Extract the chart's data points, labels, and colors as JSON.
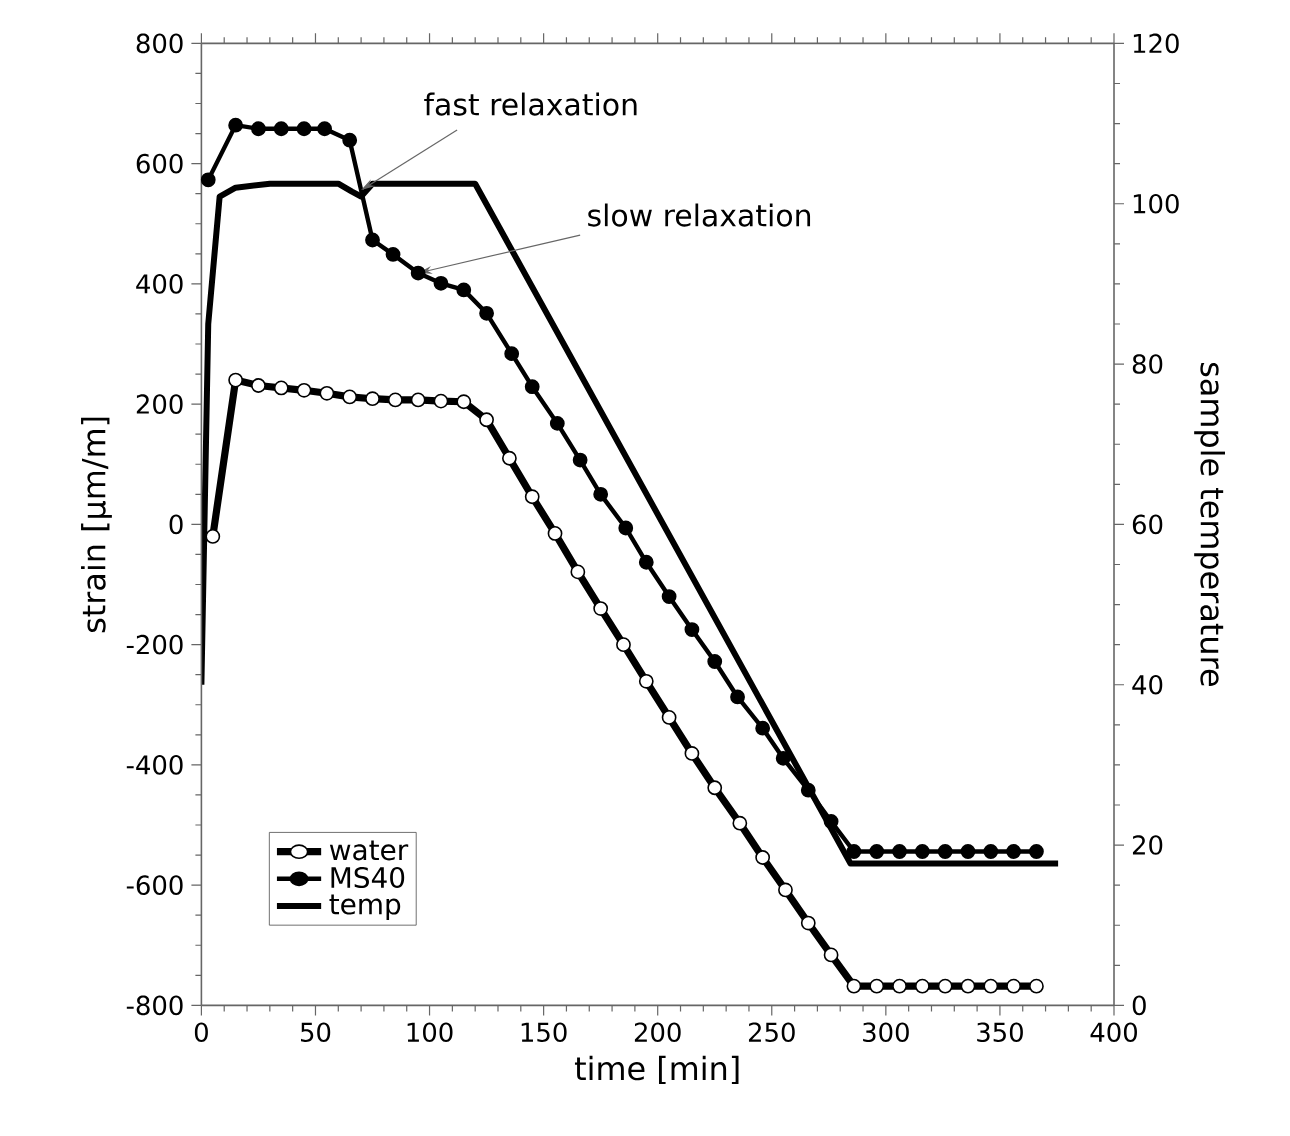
{
  "chart_data": {
    "type": "line",
    "xlabel": "time [min]",
    "ylabel": "strain [µm/m]",
    "y2label": "sample temperature",
    "xlim": [
      0,
      400
    ],
    "xticks": [
      0,
      50,
      100,
      150,
      200,
      250,
      300,
      350,
      400
    ],
    "ylim": [
      -800,
      800
    ],
    "yticks": [
      -800,
      -600,
      -400,
      -200,
      0,
      200,
      400,
      600,
      800
    ],
    "y2lim": [
      0,
      120
    ],
    "y2ticks": [
      0,
      20,
      40,
      60,
      80,
      100,
      120
    ],
    "legend": "bottom left",
    "marker": "circle",
    "series": [
      {
        "name": "water",
        "color": "#000000",
        "x": [
          5,
          15,
          25,
          35,
          45,
          55,
          65,
          75,
          85,
          95,
          105,
          115,
          125,
          135,
          145,
          155,
          165,
          175,
          185,
          195,
          205,
          215,
          225,
          236,
          246,
          256,
          266,
          276,
          286,
          296,
          306,
          316,
          326,
          336,
          346,
          356,
          366
        ],
        "values": [
          -20,
          240,
          231,
          227,
          223,
          218,
          212,
          209,
          207,
          207,
          205,
          204,
          174,
          110,
          46,
          -15,
          -79,
          -140,
          -200,
          -261,
          -321,
          -381,
          -438,
          -497,
          -554,
          -608,
          -663,
          -716,
          -768,
          -768,
          -768,
          -768,
          -768,
          -768,
          -768,
          -768,
          -768
        ]
      },
      {
        "name": "MS40",
        "color": "#000000",
        "x": [
          3,
          15,
          25,
          35,
          45,
          54,
          65,
          75,
          84,
          95,
          105,
          115,
          125,
          136,
          145,
          156,
          166,
          175,
          186,
          195,
          205,
          215,
          225,
          235,
          246,
          255,
          266,
          276,
          286,
          296,
          306,
          316,
          326,
          336,
          346,
          356,
          366
        ],
        "values": [
          573,
          664,
          658,
          658,
          658,
          658,
          639,
          473,
          449,
          418,
          401,
          390,
          351,
          284,
          229,
          168,
          107,
          50,
          -6,
          -63,
          -120,
          -175,
          -228,
          -287,
          -339,
          -389,
          -442,
          -494,
          -544,
          -544,
          -544,
          -544,
          -544,
          -544,
          -544,
          -544,
          -544
        ]
      },
      {
        "name": "temp",
        "color": "#000000",
        "axis": "y2",
        "marker": "none",
        "x": [
          0,
          3,
          8,
          15,
          30,
          60,
          66,
          70,
          75,
          90,
          120,
          284.5,
          300,
          375.5
        ],
        "values": [
          40,
          85,
          100.9,
          102,
          102.5,
          102.5,
          101.5,
          100.9,
          102.5,
          102.5,
          102.5,
          17.7,
          17.7,
          17.7
        ]
      }
    ],
    "annotations": [
      {
        "text": "fast relaxation",
        "x": 70,
        "y": 556
      },
      {
        "text": "slow relaxation",
        "x": 95,
        "y": 418
      }
    ]
  }
}
